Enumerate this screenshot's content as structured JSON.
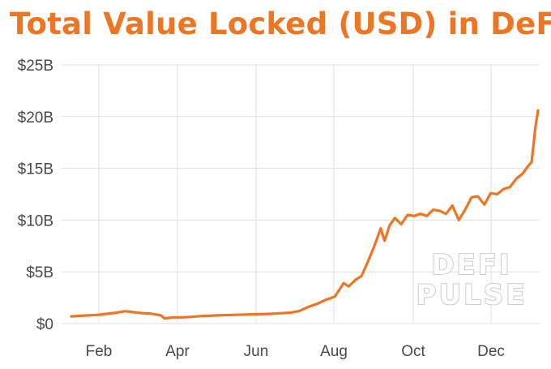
{
  "title": "Total Value Locked (USD) in DeFi",
  "colors": {
    "line": "#ee7623",
    "title": "#ee7623",
    "grid": "#e1e1e1",
    "tick_text": "#4a4a4a"
  },
  "watermark": {
    "line1": "DEFI",
    "line2": "PULSE"
  },
  "chart_data": {
    "type": "line",
    "title": "Total Value Locked (USD) in DeFi",
    "xlabel": "",
    "ylabel": "",
    "x_ticks": [
      "Feb",
      "Apr",
      "Jun",
      "Aug",
      "Oct",
      "Dec"
    ],
    "y_ticks": [
      "$0",
      "$5B",
      "$10B",
      "$15B",
      "$20B",
      "$25B"
    ],
    "ylim": [
      0,
      25
    ],
    "y_unit": "billion USD",
    "grid": true,
    "legend": "none",
    "series": [
      {
        "x": [
          "2020-01-01",
          "2020-01-08",
          "2020-01-15",
          "2020-01-22",
          "2020-01-29",
          "2020-02-05",
          "2020-02-12",
          "2020-02-19",
          "2020-02-26",
          "2020-03-04",
          "2020-03-11",
          "2020-03-14",
          "2020-03-21",
          "2020-03-28",
          "2020-04-04",
          "2020-04-11",
          "2020-04-18",
          "2020-04-25",
          "2020-05-02",
          "2020-05-09",
          "2020-05-16",
          "2020-05-23",
          "2020-05-30",
          "2020-06-06",
          "2020-06-13",
          "2020-06-20",
          "2020-06-27",
          "2020-07-04",
          "2020-07-11",
          "2020-07-18",
          "2020-07-25",
          "2020-08-01",
          "2020-08-05",
          "2020-08-10",
          "2020-08-15",
          "2020-08-20",
          "2020-08-25",
          "2020-08-30",
          "2020-09-02",
          "2020-09-06",
          "2020-09-10",
          "2020-09-15",
          "2020-09-20",
          "2020-09-25",
          "2020-09-30",
          "2020-10-05",
          "2020-10-10",
          "2020-10-15",
          "2020-10-20",
          "2020-10-25",
          "2020-10-30",
          "2020-11-04",
          "2020-11-09",
          "2020-11-14",
          "2020-11-19",
          "2020-11-24",
          "2020-11-29",
          "2020-12-04",
          "2020-12-09",
          "2020-12-14",
          "2020-12-19",
          "2020-12-23",
          "2020-12-26",
          "2020-12-29",
          "2020-12-31"
        ],
        "y": [
          0.7,
          0.75,
          0.8,
          0.85,
          0.95,
          1.05,
          1.2,
          1.1,
          1.0,
          0.95,
          0.8,
          0.5,
          0.6,
          0.6,
          0.65,
          0.72,
          0.75,
          0.8,
          0.82,
          0.85,
          0.88,
          0.9,
          0.92,
          0.95,
          1.0,
          1.05,
          1.2,
          1.6,
          1.9,
          2.3,
          2.6,
          3.9,
          3.6,
          4.2,
          4.6,
          6.0,
          7.5,
          9.2,
          8.0,
          9.5,
          10.2,
          9.6,
          10.5,
          10.4,
          10.6,
          10.4,
          11.0,
          10.9,
          10.6,
          11.4,
          10.0,
          11.0,
          12.2,
          12.3,
          11.5,
          12.6,
          12.5,
          13.0,
          13.2,
          14.0,
          14.5,
          15.2,
          15.6,
          19.0,
          20.6
        ]
      }
    ]
  }
}
